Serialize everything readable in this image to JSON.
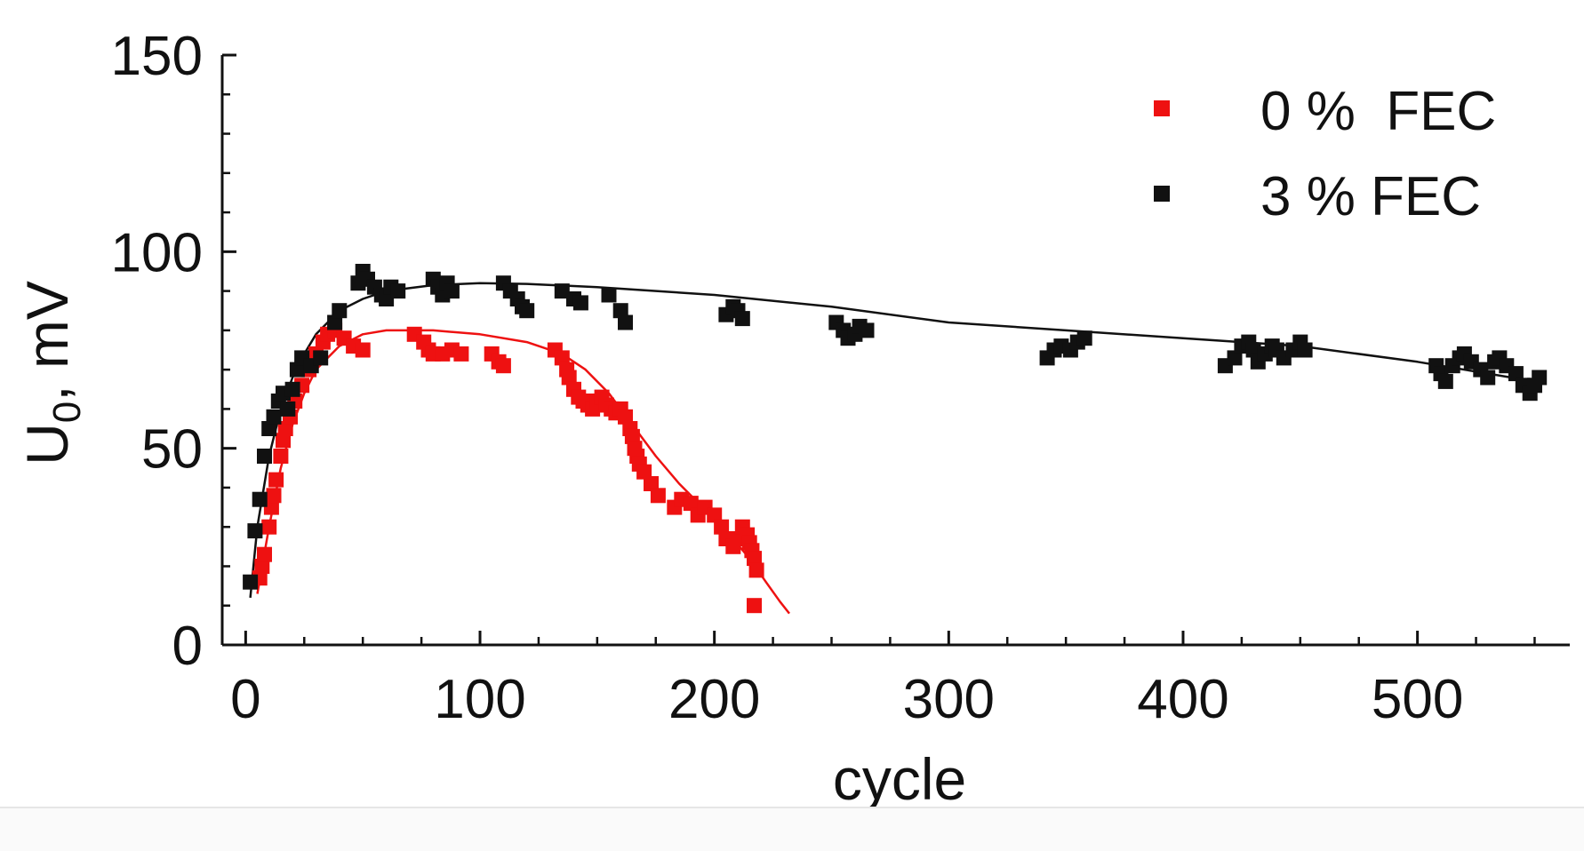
{
  "chart_data": {
    "type": "scatter",
    "title": "",
    "xlabel": "cycle",
    "ylabel": "U",
    "ylabel_sub": "0",
    "ylabel_suffix": ", mV",
    "xlim": [
      -10,
      565
    ],
    "ylim": [
      0,
      150
    ],
    "xticks": [
      0,
      100,
      200,
      300,
      400,
      500
    ],
    "yticks": [
      0,
      50,
      100,
      150
    ],
    "x_minor_step": 25,
    "y_minor_step": 10,
    "legend_position": "top-right",
    "series": [
      {
        "name": "0 %  FEC",
        "color": "#ee1111",
        "marker": "square",
        "points": [
          [
            6,
            17
          ],
          [
            7,
            20
          ],
          [
            8,
            23
          ],
          [
            10,
            30
          ],
          [
            11,
            35
          ],
          [
            12,
            38
          ],
          [
            13,
            42
          ],
          [
            15,
            48
          ],
          [
            16,
            52
          ],
          [
            17,
            55
          ],
          [
            19,
            58
          ],
          [
            21,
            62
          ],
          [
            24,
            66
          ],
          [
            27,
            70
          ],
          [
            30,
            74
          ],
          [
            33,
            77
          ],
          [
            35,
            79
          ],
          [
            38,
            80
          ],
          [
            42,
            78
          ],
          [
            46,
            76
          ],
          [
            50,
            75
          ],
          [
            72,
            79
          ],
          [
            76,
            77
          ],
          [
            78,
            75
          ],
          [
            80,
            74
          ],
          [
            84,
            74
          ],
          [
            88,
            75
          ],
          [
            92,
            74
          ],
          [
            105,
            74
          ],
          [
            108,
            72
          ],
          [
            110,
            71
          ],
          [
            132,
            75
          ],
          [
            135,
            73
          ],
          [
            137,
            70
          ],
          [
            138,
            68
          ],
          [
            140,
            65
          ],
          [
            142,
            63
          ],
          [
            144,
            62
          ],
          [
            146,
            61
          ],
          [
            148,
            60
          ],
          [
            150,
            62
          ],
          [
            152,
            63
          ],
          [
            154,
            61
          ],
          [
            156,
            60
          ],
          [
            158,
            59
          ],
          [
            160,
            60
          ],
          [
            162,
            58
          ],
          [
            164,
            55
          ],
          [
            165,
            53
          ],
          [
            166,
            50
          ],
          [
            167,
            48
          ],
          [
            168,
            46
          ],
          [
            170,
            44
          ],
          [
            173,
            41
          ],
          [
            176,
            38
          ],
          [
            183,
            35
          ],
          [
            186,
            37
          ],
          [
            190,
            36
          ],
          [
            193,
            33
          ],
          [
            196,
            35
          ],
          [
            200,
            33
          ],
          [
            203,
            30
          ],
          [
            205,
            27
          ],
          [
            208,
            25
          ],
          [
            210,
            27
          ],
          [
            212,
            30
          ],
          [
            214,
            28
          ],
          [
            215,
            26
          ],
          [
            216,
            24
          ],
          [
            217,
            22
          ],
          [
            218,
            19
          ],
          [
            217,
            10
          ]
        ]
      },
      {
        "name": "3 % FEC",
        "color": "#111111",
        "marker": "square",
        "points": [
          [
            2,
            16
          ],
          [
            4,
            29
          ],
          [
            6,
            37
          ],
          [
            8,
            48
          ],
          [
            10,
            55
          ],
          [
            12,
            58
          ],
          [
            14,
            62
          ],
          [
            16,
            64
          ],
          [
            18,
            60
          ],
          [
            20,
            65
          ],
          [
            22,
            70
          ],
          [
            24,
            73
          ],
          [
            28,
            71
          ],
          [
            32,
            73
          ],
          [
            38,
            82
          ],
          [
            40,
            85
          ],
          [
            48,
            92
          ],
          [
            50,
            95
          ],
          [
            52,
            93
          ],
          [
            55,
            91
          ],
          [
            58,
            89
          ],
          [
            60,
            88
          ],
          [
            62,
            91
          ],
          [
            65,
            90
          ],
          [
            80,
            93
          ],
          [
            82,
            91
          ],
          [
            84,
            89
          ],
          [
            86,
            92
          ],
          [
            88,
            90
          ],
          [
            110,
            92
          ],
          [
            113,
            90
          ],
          [
            116,
            88
          ],
          [
            118,
            86
          ],
          [
            120,
            85
          ],
          [
            135,
            90
          ],
          [
            140,
            88
          ],
          [
            143,
            87
          ],
          [
            155,
            89
          ],
          [
            160,
            85
          ],
          [
            162,
            82
          ],
          [
            205,
            84
          ],
          [
            208,
            86
          ],
          [
            210,
            85
          ],
          [
            212,
            83
          ],
          [
            252,
            82
          ],
          [
            255,
            80
          ],
          [
            257,
            78
          ],
          [
            260,
            79
          ],
          [
            262,
            81
          ],
          [
            265,
            80
          ],
          [
            342,
            73
          ],
          [
            345,
            75
          ],
          [
            348,
            76
          ],
          [
            352,
            75
          ],
          [
            355,
            77
          ],
          [
            358,
            78
          ],
          [
            418,
            71
          ],
          [
            422,
            73
          ],
          [
            425,
            76
          ],
          [
            428,
            77
          ],
          [
            430,
            75
          ],
          [
            432,
            72
          ],
          [
            435,
            74
          ],
          [
            438,
            76
          ],
          [
            440,
            75
          ],
          [
            443,
            73
          ],
          [
            447,
            75
          ],
          [
            450,
            77
          ],
          [
            452,
            75
          ],
          [
            508,
            71
          ],
          [
            510,
            69
          ],
          [
            512,
            67
          ],
          [
            515,
            71
          ],
          [
            518,
            73
          ],
          [
            520,
            74
          ],
          [
            523,
            72
          ],
          [
            527,
            70
          ],
          [
            530,
            68
          ],
          [
            533,
            72
          ],
          [
            535,
            73
          ],
          [
            538,
            71
          ],
          [
            542,
            69
          ],
          [
            545,
            66
          ],
          [
            548,
            64
          ],
          [
            550,
            66
          ],
          [
            552,
            68
          ]
        ]
      }
    ],
    "fits": [
      {
        "series": "0 %  FEC",
        "color": "#ee1111",
        "points": [
          [
            5,
            13
          ],
          [
            10,
            30
          ],
          [
            15,
            45
          ],
          [
            20,
            56
          ],
          [
            25,
            64
          ],
          [
            30,
            70
          ],
          [
            40,
            76
          ],
          [
            50,
            79
          ],
          [
            60,
            80
          ],
          [
            80,
            80
          ],
          [
            100,
            79
          ],
          [
            120,
            77
          ],
          [
            135,
            74
          ],
          [
            145,
            70
          ],
          [
            155,
            64
          ],
          [
            165,
            56
          ],
          [
            175,
            48
          ],
          [
            185,
            41
          ],
          [
            195,
            35
          ],
          [
            205,
            29
          ],
          [
            215,
            22
          ],
          [
            222,
            16
          ],
          [
            228,
            11
          ],
          [
            232,
            8
          ]
        ]
      },
      {
        "series": "3 % FEC",
        "color": "#111111",
        "points": [
          [
            2,
            12
          ],
          [
            5,
            30
          ],
          [
            10,
            48
          ],
          [
            15,
            60
          ],
          [
            20,
            68
          ],
          [
            25,
            74
          ],
          [
            30,
            79
          ],
          [
            40,
            85
          ],
          [
            50,
            88
          ],
          [
            60,
            90
          ],
          [
            80,
            91.5
          ],
          [
            100,
            92
          ],
          [
            120,
            91.8
          ],
          [
            150,
            91
          ],
          [
            200,
            89
          ],
          [
            250,
            86
          ],
          [
            300,
            82
          ],
          [
            350,
            80
          ],
          [
            400,
            78
          ],
          [
            450,
            76
          ],
          [
            500,
            72
          ],
          [
            550,
            67
          ]
        ]
      }
    ]
  }
}
